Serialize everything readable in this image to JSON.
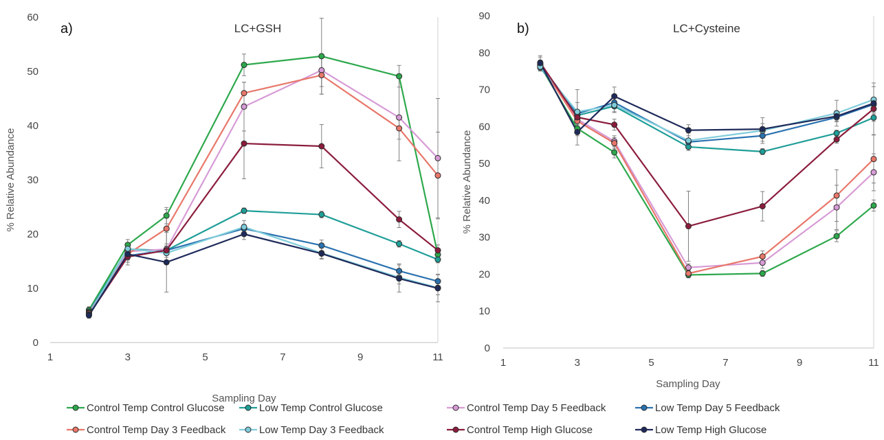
{
  "chart_data": [
    {
      "type": "line",
      "panel_label": "a)",
      "title": "LC+GSH",
      "xlabel": "Sampling Day",
      "ylabel": "% Relative Abundance",
      "xlim": [
        1,
        11
      ],
      "ylim": [
        0,
        60
      ],
      "xticks": [
        1,
        3,
        5,
        7,
        9,
        11
      ],
      "yticks": [
        0,
        10,
        20,
        30,
        40,
        50,
        60
      ],
      "grid": false,
      "x": [
        2,
        3,
        4,
        6,
        8,
        10,
        11
      ],
      "series": [
        {
          "name": "Control Temp Control Glucose",
          "color": "#2DA84C",
          "values": [
            6.0,
            18.0,
            23.4,
            51.2,
            52.8,
            49.1,
            16.2
          ],
          "errors": [
            0.6,
            1.0,
            1.5,
            2.0,
            7.0,
            2.0,
            1.0
          ]
        },
        {
          "name": "Low Temp Control Glucose",
          "color": "#1F9E98",
          "values": [
            5.7,
            17.2,
            17.0,
            24.3,
            23.6,
            18.2,
            15.3
          ],
          "errors": [
            0.5,
            0.8,
            0.8,
            0.5,
            0.6,
            0.6,
            0.6
          ]
        },
        {
          "name": "Control Temp Day 5 Feedback",
          "color": "#D79BD6",
          "values": [
            5.5,
            16.8,
            17.2,
            43.5,
            50.2,
            41.5,
            34.0
          ],
          "errors": [
            0.5,
            1.5,
            1.0,
            4.5,
            3.0,
            8.0,
            11.0
          ]
        },
        {
          "name": "Low Temp Day 5 Feedback",
          "color": "#2A72B0",
          "values": [
            5.3,
            16.0,
            17.0,
            21.0,
            17.9,
            13.2,
            11.3
          ],
          "errors": [
            0.5,
            0.8,
            0.8,
            0.8,
            1.0,
            1.3,
            1.3
          ]
        },
        {
          "name": "Control Temp Day 3 Feedback",
          "color": "#E8776A",
          "values": [
            5.4,
            16.3,
            21.0,
            46.0,
            49.3,
            39.5,
            30.8
          ],
          "errors": [
            0.5,
            1.5,
            3.5,
            2.0,
            3.5,
            2.0,
            8.0
          ]
        },
        {
          "name": "Low Temp Day 3 Feedback",
          "color": "#7FCCDB",
          "values": [
            5.2,
            17.3,
            16.5,
            21.3,
            16.5,
            12.0,
            10.1
          ],
          "errors": [
            0.5,
            1.0,
            0.8,
            1.2,
            1.0,
            1.2,
            1.3
          ]
        },
        {
          "name": "Control Temp High Glucose",
          "color": "#8B1C3C",
          "values": [
            5.1,
            15.8,
            17.0,
            36.7,
            36.2,
            22.7,
            17.0
          ],
          "errors": [
            0.5,
            1.5,
            0.8,
            6.5,
            4.0,
            1.5,
            1.0
          ]
        },
        {
          "name": "Low Temp High Glucose",
          "color": "#1E2A5A",
          "values": [
            5.0,
            16.3,
            14.8,
            20.0,
            16.4,
            11.8,
            10.0
          ],
          "errors": [
            0.5,
            1.0,
            5.5,
            1.0,
            1.0,
            2.5,
            2.5
          ]
        }
      ]
    },
    {
      "type": "line",
      "panel_label": "b)",
      "title": "LC+Cysteine",
      "xlabel": "Sampling Day",
      "ylabel": "% Relative Abundance",
      "xlim": [
        1,
        11
      ],
      "ylim": [
        0,
        90
      ],
      "xticks": [
        1,
        3,
        5,
        7,
        9,
        11
      ],
      "yticks": [
        0,
        10,
        20,
        30,
        40,
        50,
        60,
        70,
        80,
        90
      ],
      "grid": false,
      "x": [
        2,
        3,
        4,
        6,
        8,
        10,
        11
      ],
      "series": [
        {
          "name": "Control Temp Control Glucose",
          "color": "#2DA84C",
          "values": [
            76.5,
            59.5,
            53.0,
            19.8,
            20.2,
            30.3,
            38.6
          ],
          "errors": [
            1.0,
            2.0,
            1.5,
            0.8,
            0.8,
            1.5,
            1.5
          ]
        },
        {
          "name": "Low Temp Control Glucose",
          "color": "#1F9E98",
          "values": [
            76.0,
            63.0,
            65.5,
            54.5,
            53.2,
            58.2,
            62.4
          ],
          "errors": [
            1.0,
            1.5,
            1.5,
            1.0,
            0.8,
            0.8,
            1.0
          ]
        },
        {
          "name": "Control Temp Day 5 Feedback",
          "color": "#D79BD6",
          "values": [
            76.5,
            62.0,
            56.0,
            21.8,
            23.1,
            38.1,
            47.6
          ],
          "errors": [
            1.0,
            2.0,
            1.5,
            1.0,
            1.5,
            6.0,
            5.0
          ]
        },
        {
          "name": "Low Temp Day 5 Feedback",
          "color": "#2A72B0",
          "values": [
            76.8,
            63.5,
            66.5,
            55.8,
            57.5,
            62.5,
            66.0
          ],
          "errors": [
            1.0,
            3.0,
            1.5,
            1.0,
            1.5,
            1.0,
            1.0
          ]
        },
        {
          "name": "Control Temp Day 3 Feedback",
          "color": "#E8776A",
          "values": [
            77.0,
            61.5,
            55.5,
            20.2,
            24.8,
            41.3,
            51.2
          ],
          "errors": [
            1.0,
            1.5,
            1.5,
            0.8,
            1.5,
            7.0,
            6.5
          ]
        },
        {
          "name": "Low Temp Day 3 Feedback",
          "color": "#7FCCDB",
          "values": [
            76.2,
            64.0,
            65.8,
            56.2,
            58.9,
            63.6,
            67.3
          ],
          "errors": [
            1.0,
            6.0,
            2.0,
            2.0,
            3.5,
            3.5,
            3.5
          ]
        },
        {
          "name": "Control Temp High Glucose",
          "color": "#8B1C3C",
          "values": [
            77.3,
            62.5,
            60.5,
            33.0,
            38.4,
            56.5,
            64.8
          ],
          "errors": [
            1.5,
            2.0,
            1.5,
            9.5,
            4.0,
            1.0,
            7.0
          ]
        },
        {
          "name": "Low Temp High Glucose",
          "color": "#1E2A5A",
          "values": [
            77.2,
            58.5,
            68.2,
            59.0,
            59.3,
            62.8,
            66.3
          ],
          "errors": [
            2.0,
            3.5,
            2.5,
            1.5,
            1.5,
            1.5,
            1.5
          ]
        }
      ]
    }
  ]
}
